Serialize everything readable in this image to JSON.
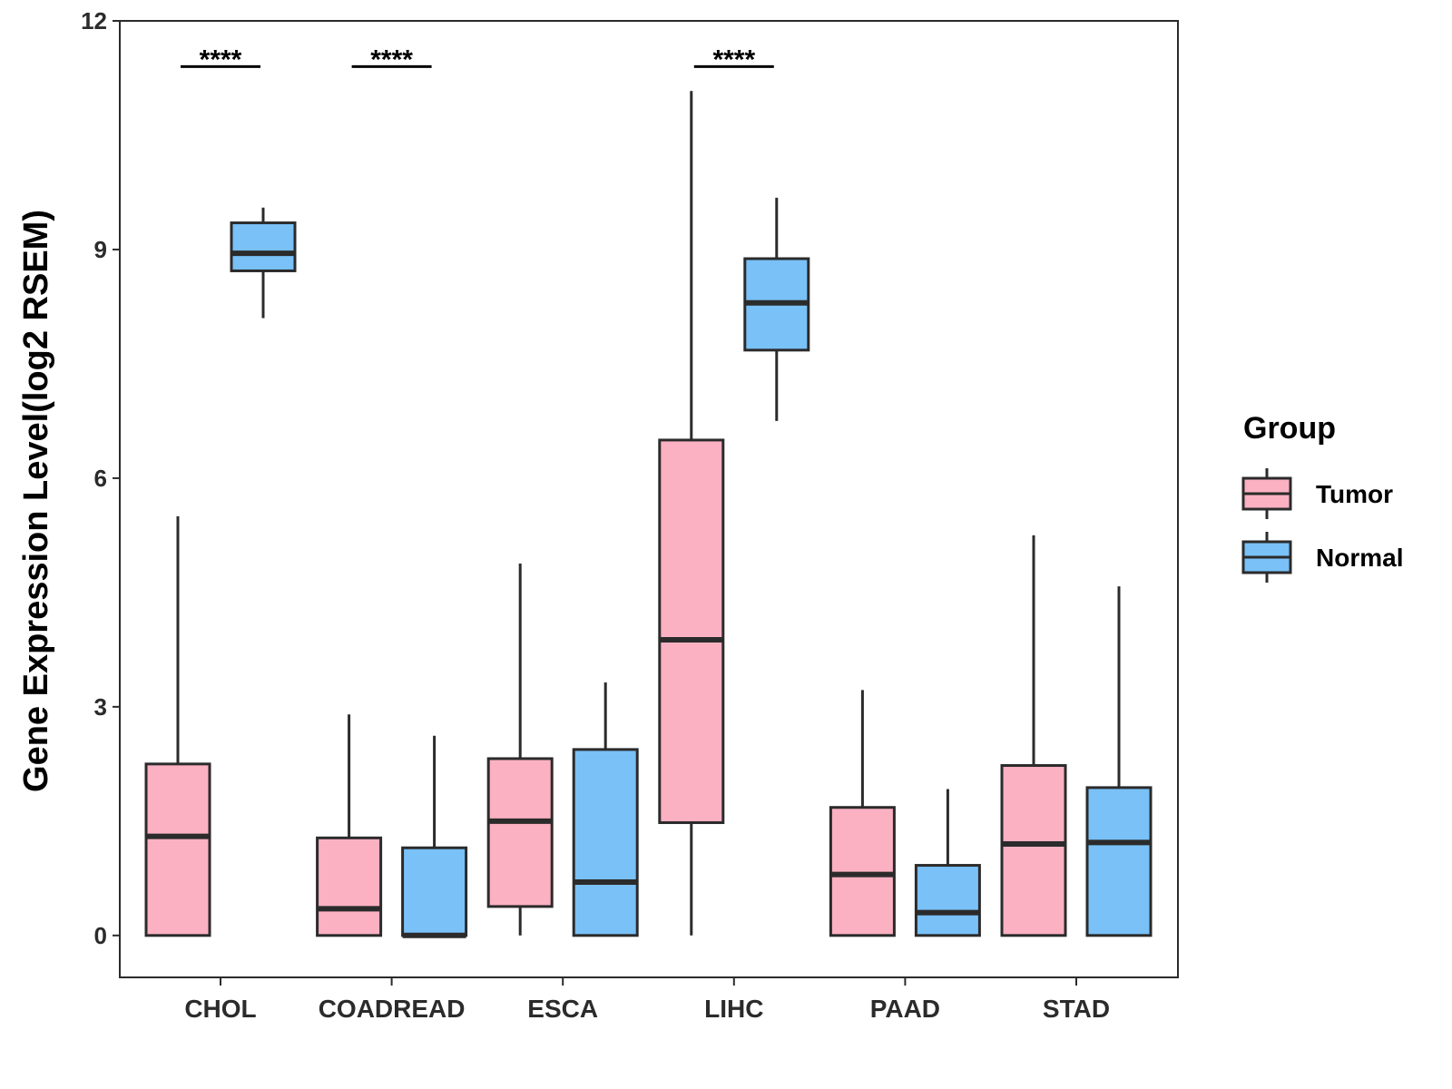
{
  "chart_data": {
    "type": "boxplot",
    "title": "",
    "xlabel": "",
    "ylabel": "Gene Expression Level(log2 RSEM)",
    "ylim": [
      -0.55,
      12
    ],
    "yticks": [
      0,
      3,
      6,
      9,
      12
    ],
    "categories": [
      "CHOL",
      "COADREAD",
      "ESCA",
      "LIHC",
      "PAAD",
      "STAD"
    ],
    "legend": {
      "title": "Group",
      "placement": "right",
      "entries": [
        {
          "name": "Tumor",
          "color": "#fbb1c2"
        },
        {
          "name": "Normal",
          "color": "#79c1f7"
        }
      ]
    },
    "series": [
      {
        "name": "Tumor",
        "color": "#fbb1c2",
        "boxes": [
          {
            "category": "CHOL",
            "min": 0.0,
            "q1": 0.0,
            "median": 1.3,
            "q3": 2.25,
            "max": 5.5
          },
          {
            "category": "COADREAD",
            "min": 0.0,
            "q1": 0.0,
            "median": 0.35,
            "q3": 1.28,
            "max": 2.9
          },
          {
            "category": "ESCA",
            "min": 0.0,
            "q1": 0.38,
            "median": 1.5,
            "q3": 2.32,
            "max": 4.88
          },
          {
            "category": "LIHC",
            "min": 0.0,
            "q1": 1.48,
            "median": 3.88,
            "q3": 6.5,
            "max": 11.08
          },
          {
            "category": "PAAD",
            "min": 0.0,
            "q1": 0.0,
            "median": 0.8,
            "q3": 1.68,
            "max": 3.22
          },
          {
            "category": "STAD",
            "min": 0.0,
            "q1": 0.0,
            "median": 1.2,
            "q3": 2.23,
            "max": 5.25
          }
        ]
      },
      {
        "name": "Normal",
        "color": "#79c1f7",
        "boxes": [
          {
            "category": "CHOL",
            "min": 8.1,
            "q1": 8.72,
            "median": 8.95,
            "q3": 9.35,
            "max": 9.55
          },
          {
            "category": "COADREAD",
            "min": 0.0,
            "q1": 0.0,
            "median": 0.0,
            "q3": 1.15,
            "max": 2.62
          },
          {
            "category": "ESCA",
            "min": 0.0,
            "q1": 0.0,
            "median": 0.7,
            "q3": 2.44,
            "max": 3.32
          },
          {
            "category": "LIHC",
            "min": 6.75,
            "q1": 7.68,
            "median": 8.3,
            "q3": 8.88,
            "max": 9.68
          },
          {
            "category": "PAAD",
            "min": 0.0,
            "q1": 0.0,
            "median": 0.3,
            "q3": 0.92,
            "max": 1.92
          },
          {
            "category": "STAD",
            "min": 0.0,
            "q1": 0.0,
            "median": 1.22,
            "q3": 1.94,
            "max": 4.58
          }
        ]
      }
    ],
    "annotations": [
      {
        "category": "CHOL",
        "text": "****",
        "y": 11.4
      },
      {
        "category": "COADREAD",
        "text": "****",
        "y": 11.4
      },
      {
        "category": "LIHC",
        "text": "****",
        "y": 11.4
      }
    ]
  }
}
